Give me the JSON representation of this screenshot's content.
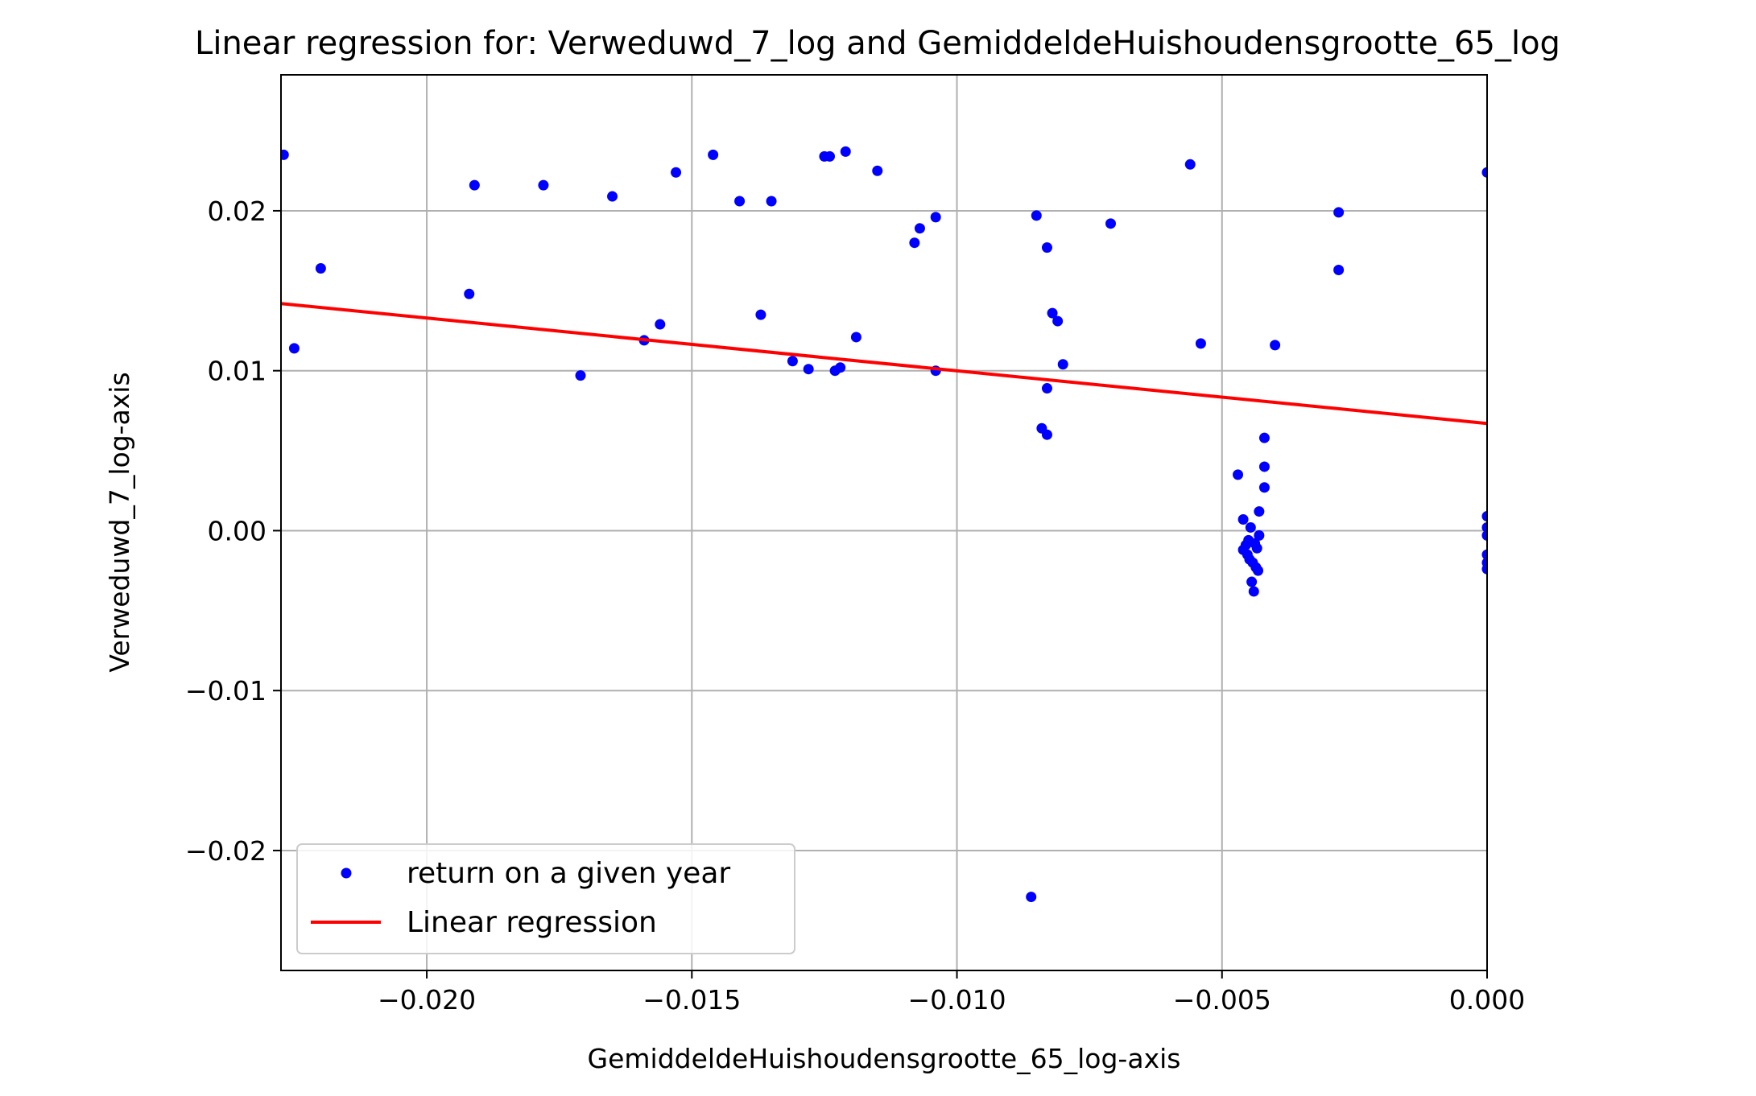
{
  "chart_data": {
    "type": "scatter",
    "title": "Linear regression for: Verweduwd_7_log and GemiddeldeHuishoudensgrootte_65_log",
    "xlabel": "GemiddeldeHuishoudensgrootte_65_log-axis",
    "ylabel": "Verweduwd_7_log-axis",
    "xlim": [
      -0.02275,
      0.0
    ],
    "ylim": [
      -0.0275,
      0.0285
    ],
    "grid": true,
    "legend_position": "lower-left",
    "x_ticks": [
      -0.02,
      -0.015,
      -0.01,
      -0.005,
      0.0
    ],
    "x_tick_labels": [
      "−0.020",
      "−0.015",
      "−0.010",
      "−0.005",
      "0.000"
    ],
    "y_ticks": [
      -0.02,
      -0.01,
      0.0,
      0.01,
      0.02
    ],
    "y_tick_labels": [
      "−0.02",
      "−0.01",
      "0.00",
      "0.01",
      "0.02"
    ],
    "colors": {
      "scatter": "#0000ff",
      "regression": "#ff0000",
      "grid": "#b0b0b0"
    },
    "series": [
      {
        "name": "return on a given year",
        "kind": "scatter",
        "points": [
          [
            -0.0227,
            0.0235
          ],
          [
            -0.0225,
            0.0114
          ],
          [
            -0.022,
            0.0164
          ],
          [
            -0.0192,
            0.0148
          ],
          [
            -0.0191,
            0.0216
          ],
          [
            -0.0178,
            0.0216
          ],
          [
            -0.0171,
            0.0097
          ],
          [
            -0.0165,
            0.0209
          ],
          [
            -0.0159,
            0.0119
          ],
          [
            -0.0156,
            0.0129
          ],
          [
            -0.0153,
            0.0224
          ],
          [
            -0.0146,
            0.0235
          ],
          [
            -0.0141,
            0.0206
          ],
          [
            -0.0137,
            0.0135
          ],
          [
            -0.0135,
            0.0206
          ],
          [
            -0.0131,
            0.0106
          ],
          [
            -0.0128,
            0.0101
          ],
          [
            -0.0125,
            0.0234
          ],
          [
            -0.0124,
            0.0234
          ],
          [
            -0.0123,
            0.01
          ],
          [
            -0.0122,
            0.0102
          ],
          [
            -0.0121,
            0.0237
          ],
          [
            -0.0119,
            0.0121
          ],
          [
            -0.0115,
            0.0225
          ],
          [
            -0.0108,
            0.018
          ],
          [
            -0.0107,
            0.0189
          ],
          [
            -0.0104,
            0.0196
          ],
          [
            -0.0104,
            0.01
          ],
          [
            -0.0086,
            -0.0229
          ],
          [
            -0.0085,
            0.0197
          ],
          [
            -0.0084,
            0.0064
          ],
          [
            -0.0083,
            0.006
          ],
          [
            -0.0083,
            0.0177
          ],
          [
            -0.0083,
            0.0089
          ],
          [
            -0.0082,
            0.0136
          ],
          [
            -0.0081,
            0.0131
          ],
          [
            -0.008,
            0.0104
          ],
          [
            -0.0071,
            0.0192
          ],
          [
            -0.0056,
            0.0229
          ],
          [
            -0.0054,
            0.0117
          ],
          [
            -0.0047,
            0.0035
          ],
          [
            -0.0046,
            0.0007
          ],
          [
            -0.0046,
            -0.0012
          ],
          [
            -0.00455,
            -0.0009
          ],
          [
            -0.00452,
            -0.0015
          ],
          [
            -0.0045,
            -0.0006
          ],
          [
            -0.00448,
            -0.0018
          ],
          [
            -0.00446,
            0.0002
          ],
          [
            -0.00444,
            -0.0032
          ],
          [
            -0.00442,
            -0.002
          ],
          [
            -0.0044,
            -0.0038
          ],
          [
            -0.00438,
            -0.0008
          ],
          [
            -0.00436,
            -0.0023
          ],
          [
            -0.00434,
            -0.0011
          ],
          [
            -0.00432,
            -0.0025
          ],
          [
            -0.0043,
            -0.0003
          ],
          [
            -0.0043,
            0.0012
          ],
          [
            -0.0042,
            0.004
          ],
          [
            -0.0042,
            0.0027
          ],
          [
            -0.0042,
            0.0058
          ],
          [
            -0.004,
            0.0116
          ],
          [
            -0.0028,
            0.0199
          ],
          [
            -0.0028,
            0.0163
          ],
          [
            0.0,
            0.0224
          ],
          [
            0.0,
            0.0009
          ],
          [
            0.0,
            0.0002
          ],
          [
            0.0,
            -0.0003
          ],
          [
            0.0,
            -0.0015
          ],
          [
            0.0,
            -0.002
          ],
          [
            0.0,
            -0.0024
          ]
        ]
      },
      {
        "name": "Linear regression",
        "kind": "line",
        "points": [
          [
            -0.02275,
            0.0142
          ],
          [
            0.0,
            0.0067
          ]
        ]
      }
    ]
  }
}
